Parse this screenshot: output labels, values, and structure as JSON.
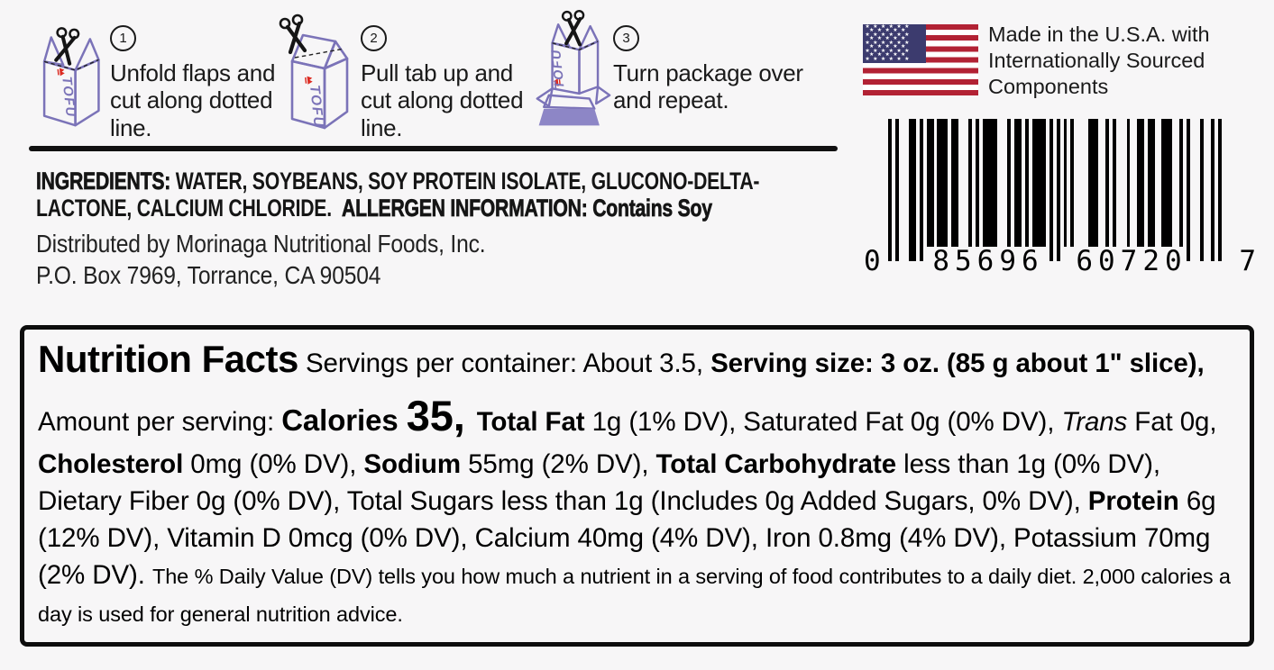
{
  "instructions": {
    "steps": [
      {
        "number": "1",
        "text": "Unfold flaps and cut along dotted line."
      },
      {
        "number": "2",
        "text": "Pull tab up and cut along dotted line."
      },
      {
        "number": "3",
        "text": "Turn package over and repeat."
      }
    ],
    "carton_label": "TOFU"
  },
  "origin": {
    "text": "Made in the U.S.A. with Internationally Sourced Components"
  },
  "barcode": {
    "digits": "085696607207",
    "display": [
      "0",
      "85696",
      "60720",
      "7"
    ]
  },
  "ingredients": {
    "label": "INGREDIENTS:",
    "list": " WATER, SOYBEANS, SOY PROTEIN ISOLATE, GLUCONO-DELTA-LACTONE, CALCIUM CHLORIDE.",
    "allergen_label": "ALLERGEN INFORMATION:",
    "allergen_value": " Contains Soy",
    "distributor": "Distributed by Morinaga Nutritional Foods, Inc.",
    "address": "P.O. Box 7969, Torrance, CA 90504"
  },
  "nutrition": {
    "segments": [
      {
        "t": "Nutrition Facts",
        "c": "title"
      },
      {
        "t": " Servings per container: About 3.5, ",
        "c": "reg"
      },
      {
        "t": "Serving size: 3 oz. (85 g about 1\" slice), ",
        "c": "bold"
      },
      {
        "t": "Amount per serving: ",
        "c": "reg"
      },
      {
        "t": "Calories ",
        "c": "cal"
      },
      {
        "t": "35, ",
        "c": "calnum"
      },
      {
        "t": "Total Fat ",
        "c": "bold"
      },
      {
        "t": "1g (1% DV), Saturated Fat 0g (0% DV), ",
        "c": "reg"
      },
      {
        "t": "Trans",
        "c": "italic"
      },
      {
        "t": " Fat 0g, ",
        "c": "reg"
      },
      {
        "t": "Cholesterol ",
        "c": "bold"
      },
      {
        "t": "0mg (0% DV), ",
        "c": "reg"
      },
      {
        "t": "Sodium ",
        "c": "bold"
      },
      {
        "t": "55mg (2% DV), ",
        "c": "reg"
      },
      {
        "t": "Total Carbohydrate ",
        "c": "bold"
      },
      {
        "t": "less than 1g (0% DV), Dietary Fiber 0g (0% DV), Total Sugars less than 1g (Includes 0g Added Sugars, 0% DV), ",
        "c": "reg"
      },
      {
        "t": "Protein ",
        "c": "bold"
      },
      {
        "t": "6g (12% DV), Vitamin D 0mcg (0% DV), Calcium 40mg (4% DV), Iron 0.8mg (4% DV), Potassium 70mg (2% DV). ",
        "c": "reg"
      },
      {
        "t": "The % Daily Value (DV) tells you how much a nutrient in a serving of food contributes to a daily diet. 2,000 calories a day is used for general nutrition advice.",
        "c": "small"
      }
    ]
  },
  "colors": {
    "carton_purple": "#7b73b8",
    "logo_red": "#dc2a20",
    "flag_red": "#b22234",
    "flag_blue": "#3c3b6e",
    "ink": "#1a1a1a",
    "panel_border": "#0d0d0d",
    "background": "#f7f6f7"
  }
}
